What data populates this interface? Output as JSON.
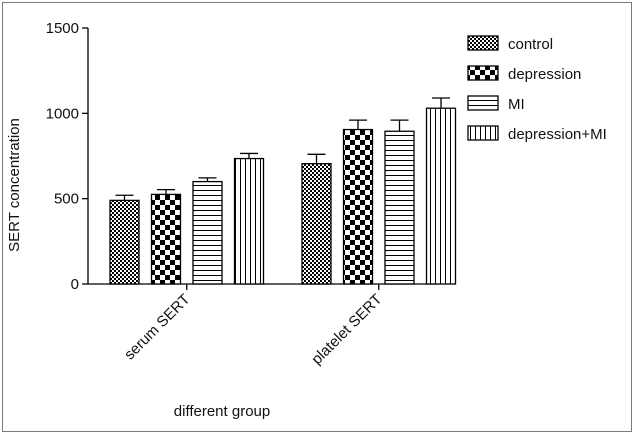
{
  "chart_data": {
    "type": "bar",
    "categories": [
      "serum SERT",
      "platelet SERT"
    ],
    "series": [
      {
        "name": "control",
        "values": [
          490,
          705
        ],
        "errors": [
          30,
          55
        ],
        "pattern": "checker-fine"
      },
      {
        "name": "depression",
        "values": [
          525,
          905
        ],
        "errors": [
          28,
          55
        ],
        "pattern": "checker-large"
      },
      {
        "name": "MI",
        "values": [
          600,
          895
        ],
        "errors": [
          22,
          65
        ],
        "pattern": "horizontal-lines"
      },
      {
        "name": "depression+MI",
        "values": [
          735,
          1030
        ],
        "errors": [
          30,
          60
        ],
        "pattern": "vertical-lines"
      }
    ],
    "xlabel": "different group",
    "ylabel": "SERT concentration",
    "ylim": [
      0,
      1500
    ],
    "yticks": [
      0,
      500,
      1000,
      1500
    ],
    "legend_position": "top-right",
    "grid": false
  }
}
